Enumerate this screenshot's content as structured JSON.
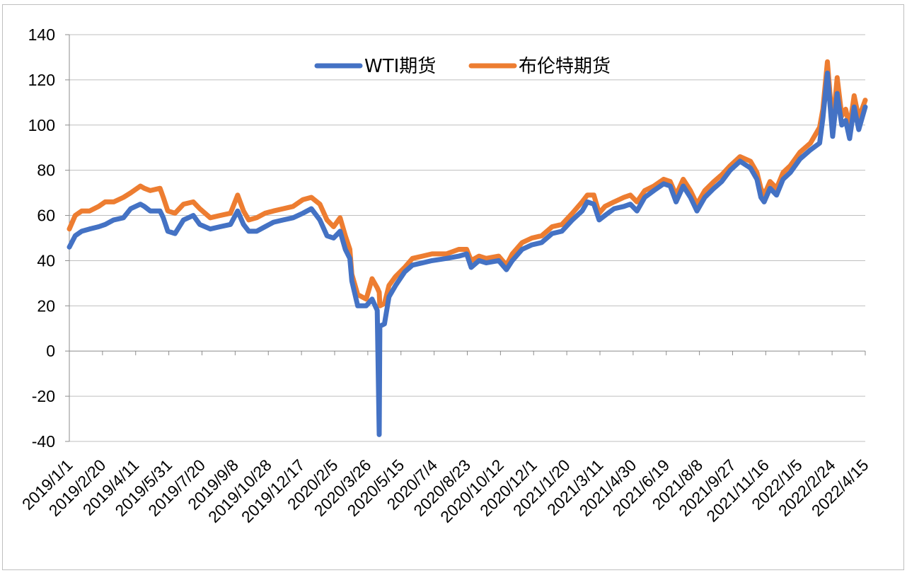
{
  "chart_data": {
    "type": "line",
    "title": "",
    "xlabel": "",
    "ylabel": "",
    "ylim": [
      -40,
      140
    ],
    "yticks": [
      -40,
      -20,
      0,
      20,
      40,
      60,
      80,
      100,
      120,
      140
    ],
    "grid": "horizontal",
    "legend_position": "top-center",
    "x_tick_labels": [
      "2019/1/1",
      "2019/2/20",
      "2019/4/11",
      "2019/5/31",
      "2019/7/20",
      "2019/9/8",
      "2019/10/28",
      "2019/12/17",
      "2020/2/5",
      "2020/3/26",
      "2020/5/15",
      "2020/7/4",
      "2020/8/23",
      "2020/10/12",
      "2020/12/1",
      "2021/1/20",
      "2021/3/11",
      "2021/4/30",
      "2021/6/19",
      "2021/8/8",
      "2021/9/27",
      "2021/11/16",
      "2022/1/5",
      "2022/2/24",
      "2022/4/15"
    ],
    "x_range": [
      "2019/1/1",
      "2022/5/5"
    ],
    "series": [
      {
        "name": "WTI期货",
        "color": "#4472c4",
        "points": [
          [
            "2019/1/1",
            46
          ],
          [
            "2019/1/10",
            51
          ],
          [
            "2019/1/20",
            53
          ],
          [
            "2019/2/1",
            54
          ],
          [
            "2019/2/15",
            55
          ],
          [
            "2019/2/25",
            56
          ],
          [
            "2019/3/10",
            58
          ],
          [
            "2019/3/25",
            59
          ],
          [
            "2019/4/5",
            63
          ],
          [
            "2019/4/20",
            65
          ],
          [
            "2019/4/26",
            64
          ],
          [
            "2019/5/5",
            62
          ],
          [
            "2019/5/20",
            62
          ],
          [
            "2019/5/25",
            59
          ],
          [
            "2019/6/1",
            53
          ],
          [
            "2019/6/12",
            52
          ],
          [
            "2019/6/25",
            58
          ],
          [
            "2019/7/10",
            60
          ],
          [
            "2019/7/20",
            56
          ],
          [
            "2019/8/5",
            54
          ],
          [
            "2019/8/20",
            55
          ],
          [
            "2019/9/5",
            56
          ],
          [
            "2019/9/16",
            62
          ],
          [
            "2019/9/25",
            56
          ],
          [
            "2019/10/3",
            53
          ],
          [
            "2019/10/15",
            53
          ],
          [
            "2019/10/28",
            55
          ],
          [
            "2019/11/10",
            57
          ],
          [
            "2019/11/25",
            58
          ],
          [
            "2019/12/10",
            59
          ],
          [
            "2019/12/25",
            61
          ],
          [
            "2020/1/7",
            63
          ],
          [
            "2020/1/20",
            58
          ],
          [
            "2020/1/31",
            51
          ],
          [
            "2020/2/10",
            50
          ],
          [
            "2020/2/20",
            53
          ],
          [
            "2020/2/28",
            45
          ],
          [
            "2020/3/6",
            41
          ],
          [
            "2020/3/9",
            31
          ],
          [
            "2020/3/18",
            20
          ],
          [
            "2020/3/31",
            20
          ],
          [
            "2020/4/9",
            23
          ],
          [
            "2020/4/17",
            18
          ],
          [
            "2020/4/20",
            -37
          ],
          [
            "2020/4/21",
            11
          ],
          [
            "2020/4/28",
            12
          ],
          [
            "2020/5/5",
            24
          ],
          [
            "2020/5/15",
            29
          ],
          [
            "2020/5/29",
            35
          ],
          [
            "2020/6/10",
            38
          ],
          [
            "2020/6/25",
            39
          ],
          [
            "2020/7/10",
            40
          ],
          [
            "2020/8/1",
            41
          ],
          [
            "2020/8/20",
            42
          ],
          [
            "2020/9/1",
            43
          ],
          [
            "2020/9/8",
            37
          ],
          [
            "2020/9/20",
            40
          ],
          [
            "2020/10/1",
            39
          ],
          [
            "2020/10/20",
            40
          ],
          [
            "2020/11/1",
            36
          ],
          [
            "2020/11/10",
            40
          ],
          [
            "2020/11/25",
            45
          ],
          [
            "2020/12/10",
            47
          ],
          [
            "2020/12/25",
            48
          ],
          [
            "2021/1/10",
            52
          ],
          [
            "2021/1/25",
            53
          ],
          [
            "2021/2/10",
            58
          ],
          [
            "2021/2/25",
            62
          ],
          [
            "2021/3/5",
            66
          ],
          [
            "2021/3/15",
            65
          ],
          [
            "2021/3/23",
            58
          ],
          [
            "2021/4/1",
            60
          ],
          [
            "2021/4/15",
            63
          ],
          [
            "2021/4/30",
            64
          ],
          [
            "2021/5/10",
            65
          ],
          [
            "2021/5/20",
            62
          ],
          [
            "2021/6/1",
            68
          ],
          [
            "2021/6/15",
            71
          ],
          [
            "2021/6/30",
            74
          ],
          [
            "2021/7/10",
            73
          ],
          [
            "2021/7/19",
            66
          ],
          [
            "2021/7/30",
            73
          ],
          [
            "2021/8/10",
            68
          ],
          [
            "2021/8/20",
            62
          ],
          [
            "2021/9/1",
            68
          ],
          [
            "2021/9/15",
            72
          ],
          [
            "2021/9/27",
            75
          ],
          [
            "2021/10/10",
            80
          ],
          [
            "2021/10/25",
            84
          ],
          [
            "2021/11/10",
            81
          ],
          [
            "2021/11/20",
            76
          ],
          [
            "2021/11/26",
            68
          ],
          [
            "2021/12/1",
            66
          ],
          [
            "2021/12/10",
            72
          ],
          [
            "2021/12/20",
            69
          ],
          [
            "2021/12/30",
            76
          ],
          [
            "2022/1/10",
            79
          ],
          [
            "2022/1/25",
            85
          ],
          [
            "2022/2/10",
            89
          ],
          [
            "2022/2/24",
            92
          ],
          [
            "2022/3/1",
            103
          ],
          [
            "2022/3/8",
            123
          ],
          [
            "2022/3/16",
            95
          ],
          [
            "2022/3/23",
            114
          ],
          [
            "2022/3/30",
            100
          ],
          [
            "2022/4/5",
            102
          ],
          [
            "2022/4/11",
            94
          ],
          [
            "2022/4/18",
            108
          ],
          [
            "2022/4/25",
            98
          ],
          [
            "2022/5/5",
            108
          ]
        ]
      },
      {
        "name": "布伦特期货",
        "color": "#ed7d31",
        "points": [
          [
            "2019/1/1",
            54
          ],
          [
            "2019/1/10",
            60
          ],
          [
            "2019/1/20",
            62
          ],
          [
            "2019/2/1",
            62
          ],
          [
            "2019/2/15",
            64
          ],
          [
            "2019/2/25",
            66
          ],
          [
            "2019/3/10",
            66
          ],
          [
            "2019/3/25",
            68
          ],
          [
            "2019/4/5",
            70
          ],
          [
            "2019/4/20",
            73
          ],
          [
            "2019/4/26",
            72
          ],
          [
            "2019/5/5",
            71
          ],
          [
            "2019/5/20",
            72
          ],
          [
            "2019/5/25",
            68
          ],
          [
            "2019/6/1",
            62
          ],
          [
            "2019/6/12",
            61
          ],
          [
            "2019/6/25",
            65
          ],
          [
            "2019/7/10",
            66
          ],
          [
            "2019/7/20",
            63
          ],
          [
            "2019/8/5",
            59
          ],
          [
            "2019/8/20",
            60
          ],
          [
            "2019/9/5",
            61
          ],
          [
            "2019/9/16",
            69
          ],
          [
            "2019/9/25",
            62
          ],
          [
            "2019/10/3",
            58
          ],
          [
            "2019/10/15",
            59
          ],
          [
            "2019/10/28",
            61
          ],
          [
            "2019/11/10",
            62
          ],
          [
            "2019/11/25",
            63
          ],
          [
            "2019/12/10",
            64
          ],
          [
            "2019/12/25",
            67
          ],
          [
            "2020/1/7",
            68
          ],
          [
            "2020/1/20",
            65
          ],
          [
            "2020/1/31",
            58
          ],
          [
            "2020/2/10",
            55
          ],
          [
            "2020/2/20",
            59
          ],
          [
            "2020/2/28",
            51
          ],
          [
            "2020/3/6",
            45
          ],
          [
            "2020/3/9",
            34
          ],
          [
            "2020/3/18",
            25
          ],
          [
            "2020/3/31",
            23
          ],
          [
            "2020/4/9",
            32
          ],
          [
            "2020/4/17",
            28
          ],
          [
            "2020/4/20",
            26
          ],
          [
            "2020/4/21",
            20
          ],
          [
            "2020/4/28",
            21
          ],
          [
            "2020/5/5",
            29
          ],
          [
            "2020/5/15",
            33
          ],
          [
            "2020/5/29",
            37
          ],
          [
            "2020/6/10",
            41
          ],
          [
            "2020/6/25",
            42
          ],
          [
            "2020/7/10",
            43
          ],
          [
            "2020/8/1",
            43
          ],
          [
            "2020/8/20",
            45
          ],
          [
            "2020/9/1",
            45
          ],
          [
            "2020/9/8",
            40
          ],
          [
            "2020/9/20",
            42
          ],
          [
            "2020/10/1",
            41
          ],
          [
            "2020/10/20",
            42
          ],
          [
            "2020/11/1",
            38
          ],
          [
            "2020/11/10",
            43
          ],
          [
            "2020/11/25",
            48
          ],
          [
            "2020/12/10",
            50
          ],
          [
            "2020/12/25",
            51
          ],
          [
            "2021/1/10",
            55
          ],
          [
            "2021/1/25",
            56
          ],
          [
            "2021/2/10",
            61
          ],
          [
            "2021/2/25",
            66
          ],
          [
            "2021/3/5",
            69
          ],
          [
            "2021/3/15",
            69
          ],
          [
            "2021/3/23",
            61
          ],
          [
            "2021/4/1",
            64
          ],
          [
            "2021/4/15",
            66
          ],
          [
            "2021/4/30",
            68
          ],
          [
            "2021/5/10",
            69
          ],
          [
            "2021/5/20",
            66
          ],
          [
            "2021/6/1",
            71
          ],
          [
            "2021/6/15",
            73
          ],
          [
            "2021/6/30",
            76
          ],
          [
            "2021/7/10",
            75
          ],
          [
            "2021/7/19",
            69
          ],
          [
            "2021/7/30",
            76
          ],
          [
            "2021/8/10",
            71
          ],
          [
            "2021/8/20",
            65
          ],
          [
            "2021/9/1",
            71
          ],
          [
            "2021/9/15",
            75
          ],
          [
            "2021/9/27",
            78
          ],
          [
            "2021/10/10",
            82
          ],
          [
            "2021/10/25",
            86
          ],
          [
            "2021/11/10",
            84
          ],
          [
            "2021/11/20",
            79
          ],
          [
            "2021/11/26",
            72
          ],
          [
            "2021/12/1",
            69
          ],
          [
            "2021/12/10",
            75
          ],
          [
            "2021/12/20",
            72
          ],
          [
            "2021/12/30",
            79
          ],
          [
            "2022/1/10",
            82
          ],
          [
            "2022/1/25",
            88
          ],
          [
            "2022/2/10",
            92
          ],
          [
            "2022/2/24",
            99
          ],
          [
            "2022/3/1",
            107
          ],
          [
            "2022/3/8",
            128
          ],
          [
            "2022/3/16",
            99
          ],
          [
            "2022/3/23",
            121
          ],
          [
            "2022/3/30",
            104
          ],
          [
            "2022/4/5",
            107
          ],
          [
            "2022/4/11",
            99
          ],
          [
            "2022/4/18",
            113
          ],
          [
            "2022/4/25",
            103
          ],
          [
            "2022/5/5",
            111
          ]
        ]
      }
    ]
  }
}
